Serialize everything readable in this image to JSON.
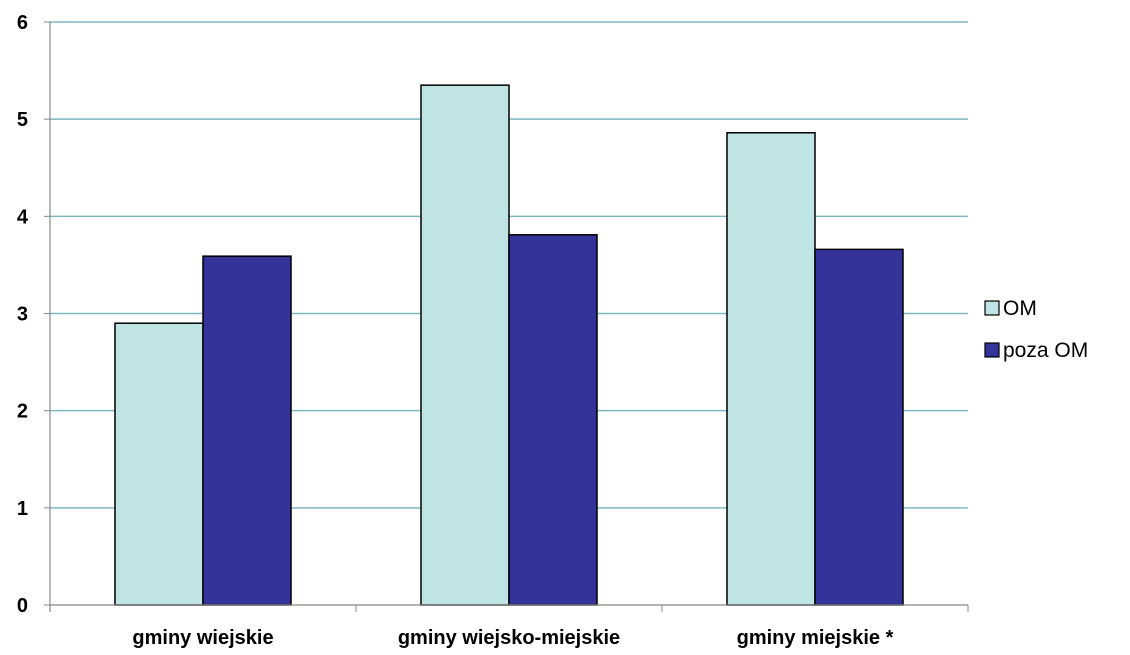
{
  "chart_data": {
    "type": "bar",
    "categories": [
      "gminy wiejskie",
      "gminy wiejsko-miejskie",
      "gminy miejskie *"
    ],
    "series": [
      {
        "name": "OM",
        "values": [
          2.9,
          5.35,
          4.86
        ],
        "color": "#c0e4e4"
      },
      {
        "name": "poza OM",
        "values": [
          3.59,
          3.81,
          3.66
        ],
        "color": "#333399"
      }
    ],
    "title": "",
    "xlabel": "",
    "ylabel": "",
    "ylim": [
      0,
      6
    ],
    "yticks": [
      "0",
      "1",
      "2",
      "3",
      "4",
      "5",
      "6"
    ],
    "grid": true,
    "gridline_color": "#7fb8c0",
    "legend_position": "right"
  }
}
